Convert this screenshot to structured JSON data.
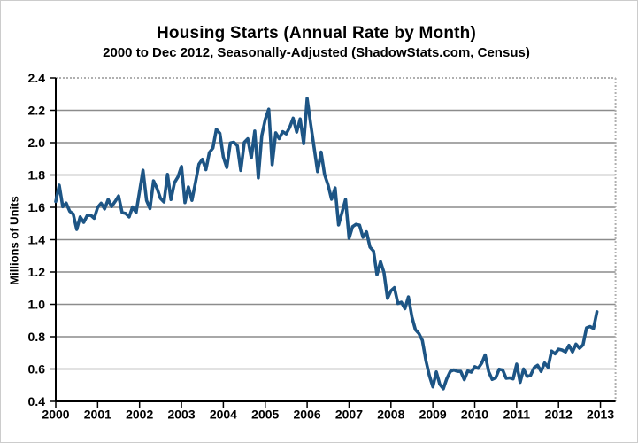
{
  "chart": {
    "title": "Housing Starts (Annual Rate by Month)",
    "subtitle": "2000 to Dec 2012, Seasonally-Adjusted (ShadowStats.com, Census)",
    "ylabel": "Millions of Units"
  },
  "colors": {
    "line": "#1d5585",
    "gridline": "#8c8c8c",
    "frame_dotted": "#b0b0b0",
    "axis": "#000000",
    "text": "#000000",
    "background": "#ffffff"
  },
  "chart_data": {
    "type": "line",
    "title": "Housing Starts (Annual Rate by Month)",
    "subtitle": "2000 to Dec 2012, Seasonally-Adjusted (ShadowStats.com, Census)",
    "xlabel": "",
    "ylabel": "Millions of Units",
    "ylim": [
      0.4,
      2.4
    ],
    "xlim": [
      2000,
      2013.36
    ],
    "y_ticks": [
      "2.4",
      "2.2",
      "2.0",
      "1.8",
      "1.6",
      "1.4",
      "1.2",
      "1.0",
      "0.8",
      "0.6",
      "0.4"
    ],
    "x_ticks": [
      "2000",
      "2001",
      "2002",
      "2003",
      "2004",
      "2005",
      "2006",
      "2007",
      "2008",
      "2009",
      "2010",
      "2011",
      "2012",
      "2013"
    ],
    "grid": "horizontal solid gray; dotted gray top and right frame",
    "legend": "none",
    "frequency": "monthly",
    "x_start": "2000-01",
    "x_end": "2012-12",
    "series": [
      {
        "name": "Housing Starts (seasonally-adjusted annual rate, millions of units)",
        "color": "#1d5585",
        "values": [
          1.636,
          1.737,
          1.604,
          1.626,
          1.575,
          1.559,
          1.463,
          1.541,
          1.507,
          1.549,
          1.551,
          1.532,
          1.6,
          1.625,
          1.59,
          1.649,
          1.605,
          1.636,
          1.67,
          1.567,
          1.562,
          1.54,
          1.602,
          1.568,
          1.698,
          1.829,
          1.642,
          1.592,
          1.764,
          1.717,
          1.655,
          1.633,
          1.804,
          1.648,
          1.753,
          1.788,
          1.853,
          1.629,
          1.726,
          1.643,
          1.751,
          1.867,
          1.897,
          1.833,
          1.939,
          1.967,
          2.083,
          2.057,
          1.911,
          1.846,
          1.998,
          2.003,
          1.981,
          1.828,
          2.002,
          2.024,
          1.905,
          2.072,
          1.782,
          2.042,
          2.144,
          2.207,
          1.864,
          2.061,
          2.025,
          2.068,
          2.054,
          2.095,
          2.151,
          2.065,
          2.147,
          1.994,
          2.273,
          2.119,
          1.969,
          1.821,
          1.942,
          1.802,
          1.737,
          1.65,
          1.72,
          1.491,
          1.57,
          1.649,
          1.409,
          1.48,
          1.495,
          1.49,
          1.415,
          1.448,
          1.354,
          1.33,
          1.183,
          1.264,
          1.197,
          1.037,
          1.084,
          1.103,
          1.005,
          1.013,
          0.973,
          1.046,
          0.923,
          0.844,
          0.82,
          0.777,
          0.652,
          0.56,
          0.49,
          0.582,
          0.505,
          0.478,
          0.54,
          0.585,
          0.594,
          0.586,
          0.585,
          0.534,
          0.588,
          0.581,
          0.614,
          0.604,
          0.636,
          0.687,
          0.583,
          0.536,
          0.546,
          0.599,
          0.594,
          0.543,
          0.545,
          0.539,
          0.63,
          0.517,
          0.6,
          0.554,
          0.561,
          0.608,
          0.623,
          0.585,
          0.637,
          0.611,
          0.711,
          0.694,
          0.723,
          0.718,
          0.706,
          0.747,
          0.706,
          0.754,
          0.728,
          0.749,
          0.854,
          0.863,
          0.851,
          0.954
        ]
      }
    ]
  }
}
